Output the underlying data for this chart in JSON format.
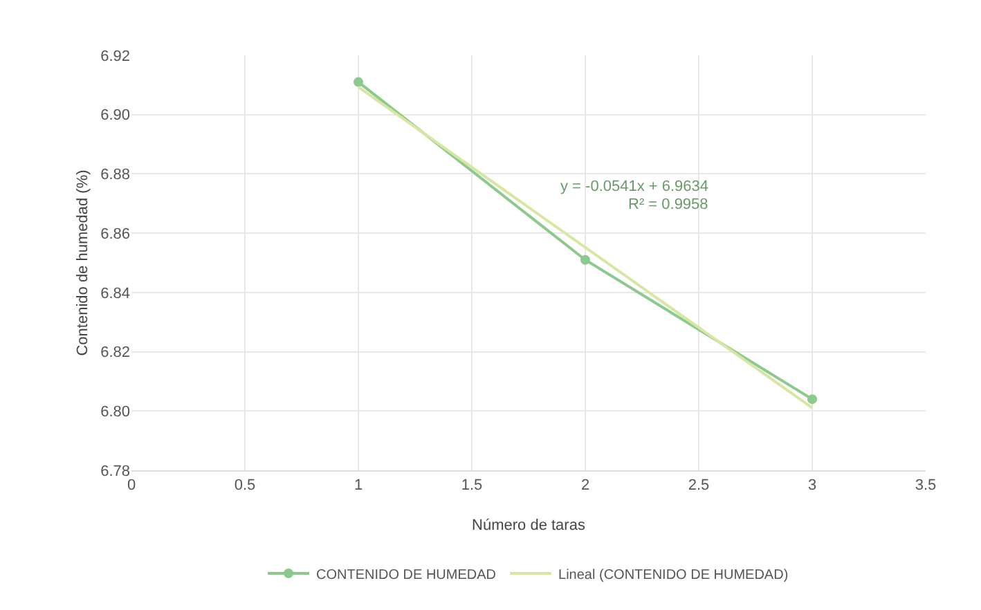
{
  "chart_data": {
    "type": "line",
    "xlabel": "Número de taras",
    "ylabel": "Contenido de humedad (%)",
    "xlim": [
      0,
      3.5
    ],
    "xticks": [
      0,
      0.5,
      1,
      1.5,
      2,
      2.5,
      3,
      3.5
    ],
    "ylim": [
      6.78,
      6.92
    ],
    "yticks": [
      6.78,
      {
        "value": 6.8,
        "label": "6.80"
      },
      6.82,
      6.84,
      6.86,
      6.88,
      {
        "value": 6.9,
        "label": "6.90"
      },
      6.92
    ],
    "grid": true,
    "legend": "bottom",
    "marker": "circle",
    "series": [
      {
        "name": "CONTENIDO DE HUMEDAD",
        "color": "#8cc98c",
        "x": [
          1,
          2,
          3
        ],
        "values": [
          6.911,
          6.851,
          6.804
        ]
      },
      {
        "type": "line",
        "name": "Lineal (CONTENIDO DE HUMEDAD)",
        "color": "#d8e6a4",
        "x": [
          1,
          3
        ],
        "values": [
          6.9093,
          6.8011
        ],
        "marker": "none"
      }
    ],
    "annotations": [
      "y = -0.0541x + 6.9634",
      "R² = 0.9958"
    ]
  }
}
